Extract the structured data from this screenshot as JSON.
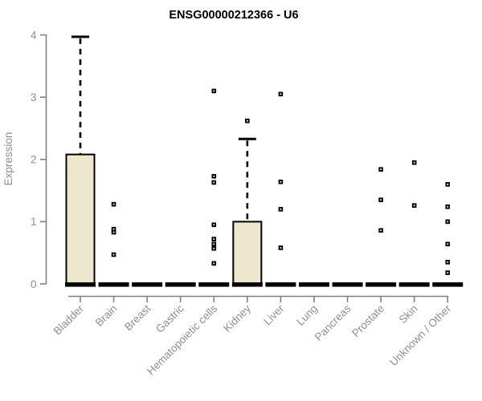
{
  "chart_data": {
    "type": "boxplot",
    "title": "ENSG00000212366 - U6",
    "xlabel": "",
    "ylabel": "Expression",
    "ylim": [
      0,
      4
    ],
    "yticks": [
      0,
      1,
      2,
      3,
      4
    ],
    "grid": false,
    "legend": "none",
    "categories": [
      "Bladder",
      "Brain",
      "Breast",
      "Gastric",
      "Hematopoietic cells",
      "Kidney",
      "Liver",
      "Lung",
      "Pancreas",
      "Prostate",
      "Skin",
      "Unknown / Other"
    ],
    "boxes": [
      {
        "category": "Bladder",
        "whisker_low": 0,
        "q1": 0,
        "median": 0,
        "q3": 2.08,
        "whisker_high": 3.97,
        "outliers": []
      },
      {
        "category": "Brain",
        "whisker_low": 0,
        "q1": 0,
        "median": 0,
        "q3": 0,
        "whisker_high": 0,
        "outliers": [
          1.28,
          0.88,
          0.83,
          0.47
        ]
      },
      {
        "category": "Breast",
        "whisker_low": 0,
        "q1": 0,
        "median": 0,
        "q3": 0,
        "whisker_high": 0,
        "outliers": []
      },
      {
        "category": "Gastric",
        "whisker_low": 0,
        "q1": 0,
        "median": 0,
        "q3": 0,
        "whisker_high": 0,
        "outliers": []
      },
      {
        "category": "Hematopoietic cells",
        "whisker_low": 0,
        "q1": 0,
        "median": 0,
        "q3": 0,
        "whisker_high": 0,
        "outliers": [
          3.1,
          1.73,
          1.63,
          0.95,
          0.72,
          0.64,
          0.57,
          0.33
        ]
      },
      {
        "category": "Kidney",
        "whisker_low": 0,
        "q1": 0,
        "median": 0,
        "q3": 1.0,
        "whisker_high": 2.33,
        "outliers": [
          2.62
        ]
      },
      {
        "category": "Liver",
        "whisker_low": 0,
        "q1": 0,
        "median": 0,
        "q3": 0,
        "whisker_high": 0,
        "outliers": [
          3.05,
          1.64,
          1.2,
          0.58
        ]
      },
      {
        "category": "Lung",
        "whisker_low": 0,
        "q1": 0,
        "median": 0,
        "q3": 0,
        "whisker_high": 0,
        "outliers": []
      },
      {
        "category": "Pancreas",
        "whisker_low": 0,
        "q1": 0,
        "median": 0,
        "q3": 0,
        "whisker_high": 0,
        "outliers": []
      },
      {
        "category": "Prostate",
        "whisker_low": 0,
        "q1": 0,
        "median": 0,
        "q3": 0,
        "whisker_high": 0,
        "outliers": [
          1.84,
          1.35,
          0.86
        ]
      },
      {
        "category": "Skin",
        "whisker_low": 0,
        "q1": 0,
        "median": 0,
        "q3": 0,
        "whisker_high": 0,
        "outliers": [
          1.95,
          1.26
        ]
      },
      {
        "category": "Unknown / Other",
        "whisker_low": 0,
        "q1": 0,
        "median": 0,
        "q3": 0,
        "whisker_high": 0,
        "outliers": [
          1.6,
          1.24,
          1.0,
          0.64,
          0.35,
          0.18
        ]
      }
    ],
    "colors": {
      "box_fill": "#ECE7CD",
      "box_stroke": "#000000",
      "whisker": "#000000",
      "median": "#000000",
      "outlier_fill": "#000000",
      "outlier_center": "#FFFFFF",
      "axis": "#808080",
      "tick_label": "#8E8E8E",
      "axis_label": "#8E8E8E",
      "title": "#000000",
      "background": "#FFFFFF"
    }
  }
}
